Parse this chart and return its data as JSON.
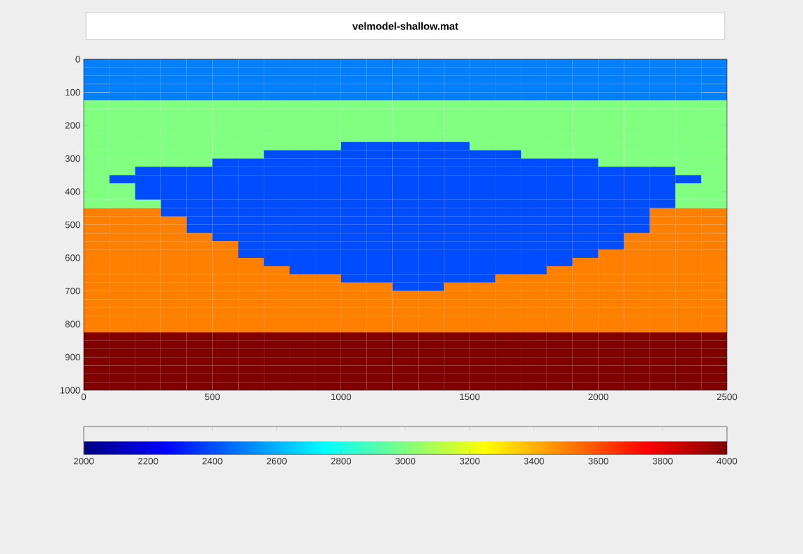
{
  "chart_data": {
    "type": "heatmap",
    "title": "velmodel-shallow.mat",
    "x": [
      50,
      150,
      250,
      350,
      450,
      550,
      650,
      750,
      850,
      950,
      1050,
      1150,
      1250,
      1350,
      1450,
      1550,
      1650,
      1750,
      1850,
      1950,
      2050,
      2150,
      2250,
      2350,
      2450
    ],
    "y": [
      12.5,
      37.5,
      62.5,
      87.5,
      112.5,
      137.5,
      162.5,
      187.5,
      212.5,
      237.5,
      262.5,
      287.5,
      312.5,
      337.5,
      362.5,
      387.5,
      412.5,
      437.5,
      462.5,
      487.5,
      512.5,
      537.5,
      562.5,
      587.5,
      612.5,
      637.5,
      662.5,
      687.5,
      712.5,
      737.5,
      762.5,
      787.5,
      812.5,
      837.5,
      862.5,
      887.5,
      912.5,
      937.5,
      962.5,
      987.5
    ],
    "xlim": [
      0,
      2500
    ],
    "xticks": [
      0,
      500,
      1000,
      1500,
      2000,
      2500
    ],
    "ylim": [
      1000,
      0
    ],
    "yticks": [
      0,
      100,
      200,
      300,
      400,
      500,
      600,
      700,
      800,
      900,
      1000
    ],
    "clim": [
      2000,
      4000
    ],
    "cticks": [
      2000,
      2200,
      2400,
      2600,
      2800,
      3000,
      3200,
      3400,
      3600,
      3800,
      4000
    ],
    "cells": [
      [
        2500,
        2500,
        2500,
        2500,
        2500,
        2500,
        2500,
        2500,
        2500,
        2500,
        2500,
        2500,
        2500,
        2500,
        2500,
        2500,
        2500,
        2500,
        2500,
        2500,
        2500,
        2500,
        2500,
        2500,
        2500
      ],
      [
        2500,
        2500,
        2500,
        2500,
        2500,
        2500,
        2500,
        2500,
        2500,
        2500,
        2500,
        2500,
        2500,
        2500,
        2500,
        2500,
        2500,
        2500,
        2500,
        2500,
        2500,
        2500,
        2500,
        2500,
        2500
      ],
      [
        2500,
        2500,
        2500,
        2500,
        2500,
        2500,
        2500,
        2500,
        2500,
        2500,
        2500,
        2500,
        2500,
        2500,
        2500,
        2500,
        2500,
        2500,
        2500,
        2500,
        2500,
        2500,
        2500,
        2500,
        2500
      ],
      [
        2500,
        2500,
        2500,
        2500,
        2500,
        2500,
        2500,
        2500,
        2500,
        2500,
        2500,
        2500,
        2500,
        2500,
        2500,
        2500,
        2500,
        2500,
        2500,
        2500,
        2500,
        2500,
        2500,
        2500,
        2500
      ],
      [
        2500,
        2500,
        2500,
        2500,
        2500,
        2500,
        2500,
        2500,
        2500,
        2500,
        2500,
        2500,
        2500,
        2500,
        2500,
        2500,
        2500,
        2500,
        2500,
        2500,
        2500,
        2500,
        2500,
        2500,
        2500
      ],
      [
        3000,
        3000,
        3000,
        3000,
        3000,
        3000,
        3000,
        3000,
        3000,
        3000,
        3000,
        3000,
        3000,
        3000,
        3000,
        3000,
        3000,
        3000,
        3000,
        3000,
        3000,
        3000,
        3000,
        3000,
        3000
      ],
      [
        3000,
        3000,
        3000,
        3000,
        3000,
        3000,
        3000,
        3000,
        3000,
        3000,
        3000,
        3000,
        3000,
        3000,
        3000,
        3000,
        3000,
        3000,
        3000,
        3000,
        3000,
        3000,
        3000,
        3000,
        3000
      ],
      [
        3000,
        3000,
        3000,
        3000,
        3000,
        3000,
        3000,
        3000,
        3000,
        3000,
        3000,
        3000,
        3000,
        3000,
        3000,
        3000,
        3000,
        3000,
        3000,
        3000,
        3000,
        3000,
        3000,
        3000,
        3000
      ],
      [
        3000,
        3000,
        3000,
        3000,
        3000,
        3000,
        3000,
        3000,
        3000,
        3000,
        3000,
        3000,
        3000,
        3000,
        3000,
        3000,
        3000,
        3000,
        3000,
        3000,
        3000,
        3000,
        3000,
        3000,
        3000
      ],
      [
        3000,
        3000,
        3000,
        3000,
        3000,
        3000,
        3000,
        3000,
        3000,
        3000,
        3000,
        3000,
        3000,
        3000,
        3000,
        3000,
        3000,
        3000,
        3000,
        3000,
        3000,
        3000,
        3000,
        3000,
        3000
      ],
      [
        3000,
        3000,
        3000,
        3000,
        3000,
        3000,
        3000,
        3000,
        3000,
        3000,
        2400,
        2400,
        2400,
        2400,
        2400,
        3000,
        3000,
        3000,
        3000,
        3000,
        3000,
        3000,
        3000,
        3000,
        3000
      ],
      [
        3000,
        3000,
        3000,
        3000,
        3000,
        3000,
        3000,
        2400,
        2400,
        2400,
        2400,
        2400,
        2400,
        2400,
        2400,
        2400,
        2400,
        3000,
        3000,
        3000,
        3000,
        3000,
        3000,
        3000,
        3000
      ],
      [
        3000,
        3000,
        3000,
        3000,
        3000,
        2400,
        2400,
        2400,
        2400,
        2400,
        2400,
        2400,
        2400,
        2400,
        2400,
        2400,
        2400,
        2400,
        2400,
        2400,
        3000,
        3000,
        3000,
        3000,
        3000
      ],
      [
        3000,
        3000,
        2400,
        2400,
        2400,
        2400,
        2400,
        2400,
        2400,
        2400,
        2400,
        2400,
        2400,
        2400,
        2400,
        2400,
        2400,
        2400,
        2400,
        2400,
        2400,
        2400,
        2400,
        3000,
        3000
      ],
      [
        3000,
        2400,
        2400,
        2400,
        2400,
        2400,
        2400,
        2400,
        2400,
        2400,
        2400,
        2400,
        2400,
        2400,
        2400,
        2400,
        2400,
        2400,
        2400,
        2400,
        2400,
        2400,
        2400,
        2400,
        3000
      ],
      [
        3000,
        3000,
        2400,
        2400,
        2400,
        2400,
        2400,
        2400,
        2400,
        2400,
        2400,
        2400,
        2400,
        2400,
        2400,
        2400,
        2400,
        2400,
        2400,
        2400,
        2400,
        2400,
        2400,
        3000,
        3000
      ],
      [
        3000,
        3000,
        2400,
        2400,
        2400,
        2400,
        2400,
        2400,
        2400,
        2400,
        2400,
        2400,
        2400,
        2400,
        2400,
        2400,
        2400,
        2400,
        2400,
        2400,
        2400,
        2400,
        2400,
        3000,
        3000
      ],
      [
        3000,
        3000,
        3000,
        2400,
        2400,
        2400,
        2400,
        2400,
        2400,
        2400,
        2400,
        2400,
        2400,
        2400,
        2400,
        2400,
        2400,
        2400,
        2400,
        2400,
        2400,
        2400,
        2400,
        3000,
        3000
      ],
      [
        3500,
        3500,
        3500,
        2400,
        2400,
        2400,
        2400,
        2400,
        2400,
        2400,
        2400,
        2400,
        2400,
        2400,
        2400,
        2400,
        2400,
        2400,
        2400,
        2400,
        2400,
        2400,
        3500,
        3500,
        3500
      ],
      [
        3500,
        3500,
        3500,
        3500,
        2400,
        2400,
        2400,
        2400,
        2400,
        2400,
        2400,
        2400,
        2400,
        2400,
        2400,
        2400,
        2400,
        2400,
        2400,
        2400,
        2400,
        2400,
        3500,
        3500,
        3500
      ],
      [
        3500,
        3500,
        3500,
        3500,
        2400,
        2400,
        2400,
        2400,
        2400,
        2400,
        2400,
        2400,
        2400,
        2400,
        2400,
        2400,
        2400,
        2400,
        2400,
        2400,
        2400,
        2400,
        3500,
        3500,
        3500
      ],
      [
        3500,
        3500,
        3500,
        3500,
        3500,
        2400,
        2400,
        2400,
        2400,
        2400,
        2400,
        2400,
        2400,
        2400,
        2400,
        2400,
        2400,
        2400,
        2400,
        2400,
        2400,
        3500,
        3500,
        3500,
        3500
      ],
      [
        3500,
        3500,
        3500,
        3500,
        3500,
        3500,
        2400,
        2400,
        2400,
        2400,
        2400,
        2400,
        2400,
        2400,
        2400,
        2400,
        2400,
        2400,
        2400,
        2400,
        2400,
        3500,
        3500,
        3500,
        3500
      ],
      [
        3500,
        3500,
        3500,
        3500,
        3500,
        3500,
        2400,
        2400,
        2400,
        2400,
        2400,
        2400,
        2400,
        2400,
        2400,
        2400,
        2400,
        2400,
        2400,
        2400,
        3500,
        3500,
        3500,
        3500,
        3500
      ],
      [
        3500,
        3500,
        3500,
        3500,
        3500,
        3500,
        3500,
        2400,
        2400,
        2400,
        2400,
        2400,
        2400,
        2400,
        2400,
        2400,
        2400,
        2400,
        2400,
        3500,
        3500,
        3500,
        3500,
        3500,
        3500
      ],
      [
        3500,
        3500,
        3500,
        3500,
        3500,
        3500,
        3500,
        3500,
        2400,
        2400,
        2400,
        2400,
        2400,
        2400,
        2400,
        2400,
        2400,
        2400,
        3500,
        3500,
        3500,
        3500,
        3500,
        3500,
        3500
      ],
      [
        3500,
        3500,
        3500,
        3500,
        3500,
        3500,
        3500,
        3500,
        3500,
        3500,
        2400,
        2400,
        2400,
        2400,
        2400,
        2400,
        3500,
        3500,
        3500,
        3500,
        3500,
        3500,
        3500,
        3500,
        3500
      ],
      [
        3500,
        3500,
        3500,
        3500,
        3500,
        3500,
        3500,
        3500,
        3500,
        3500,
        3500,
        3500,
        2400,
        2400,
        3500,
        3500,
        3500,
        3500,
        3500,
        3500,
        3500,
        3500,
        3500,
        3500,
        3500
      ],
      [
        3500,
        3500,
        3500,
        3500,
        3500,
        3500,
        3500,
        3500,
        3500,
        3500,
        3500,
        3500,
        3500,
        3500,
        3500,
        3500,
        3500,
        3500,
        3500,
        3500,
        3500,
        3500,
        3500,
        3500,
        3500
      ],
      [
        3500,
        3500,
        3500,
        3500,
        3500,
        3500,
        3500,
        3500,
        3500,
        3500,
        3500,
        3500,
        3500,
        3500,
        3500,
        3500,
        3500,
        3500,
        3500,
        3500,
        3500,
        3500,
        3500,
        3500,
        3500
      ],
      [
        3500,
        3500,
        3500,
        3500,
        3500,
        3500,
        3500,
        3500,
        3500,
        3500,
        3500,
        3500,
        3500,
        3500,
        3500,
        3500,
        3500,
        3500,
        3500,
        3500,
        3500,
        3500,
        3500,
        3500,
        3500
      ],
      [
        3500,
        3500,
        3500,
        3500,
        3500,
        3500,
        3500,
        3500,
        3500,
        3500,
        3500,
        3500,
        3500,
        3500,
        3500,
        3500,
        3500,
        3500,
        3500,
        3500,
        3500,
        3500,
        3500,
        3500,
        3500
      ],
      [
        3500,
        3500,
        3500,
        3500,
        3500,
        3500,
        3500,
        3500,
        3500,
        3500,
        3500,
        3500,
        3500,
        3500,
        3500,
        3500,
        3500,
        3500,
        3500,
        3500,
        3500,
        3500,
        3500,
        3500,
        3500
      ],
      [
        4000,
        4000,
        4000,
        4000,
        4000,
        4000,
        4000,
        4000,
        4000,
        4000,
        4000,
        4000,
        4000,
        4000,
        4000,
        4000,
        4000,
        4000,
        4000,
        4000,
        4000,
        4000,
        4000,
        4000,
        4000
      ],
      [
        4000,
        4000,
        4000,
        4000,
        4000,
        4000,
        4000,
        4000,
        4000,
        4000,
        4000,
        4000,
        4000,
        4000,
        4000,
        4000,
        4000,
        4000,
        4000,
        4000,
        4000,
        4000,
        4000,
        4000,
        4000
      ],
      [
        4000,
        4000,
        4000,
        4000,
        4000,
        4000,
        4000,
        4000,
        4000,
        4000,
        4000,
        4000,
        4000,
        4000,
        4000,
        4000,
        4000,
        4000,
        4000,
        4000,
        4000,
        4000,
        4000,
        4000,
        4000
      ],
      [
        4000,
        4000,
        4000,
        4000,
        4000,
        4000,
        4000,
        4000,
        4000,
        4000,
        4000,
        4000,
        4000,
        4000,
        4000,
        4000,
        4000,
        4000,
        4000,
        4000,
        4000,
        4000,
        4000,
        4000,
        4000
      ],
      [
        4000,
        4000,
        4000,
        4000,
        4000,
        4000,
        4000,
        4000,
        4000,
        4000,
        4000,
        4000,
        4000,
        4000,
        4000,
        4000,
        4000,
        4000,
        4000,
        4000,
        4000,
        4000,
        4000,
        4000,
        4000
      ],
      [
        4000,
        4000,
        4000,
        4000,
        4000,
        4000,
        4000,
        4000,
        4000,
        4000,
        4000,
        4000,
        4000,
        4000,
        4000,
        4000,
        4000,
        4000,
        4000,
        4000,
        4000,
        4000,
        4000,
        4000,
        4000
      ],
      [
        4000,
        4000,
        4000,
        4000,
        4000,
        4000,
        4000,
        4000,
        4000,
        4000,
        4000,
        4000,
        4000,
        4000,
        4000,
        4000,
        4000,
        4000,
        4000,
        4000,
        4000,
        4000,
        4000,
        4000,
        4000
      ]
    ]
  }
}
